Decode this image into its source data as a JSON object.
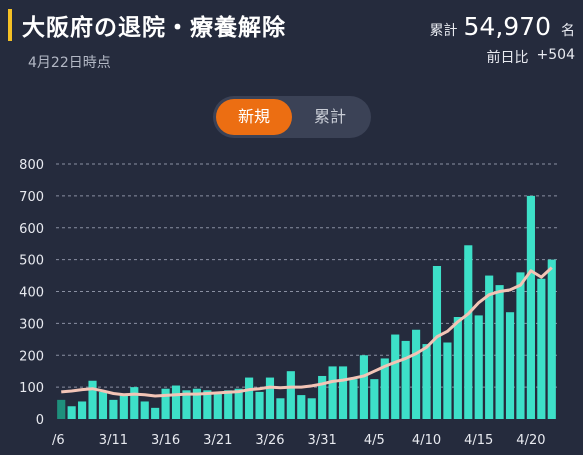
{
  "header": {
    "title": "大阪府の退院・療養解除",
    "date": "4月22日時点",
    "total_label": "累計",
    "total_value": "54,970",
    "total_unit": "名",
    "diff_label": "前日比",
    "diff_value": "+504"
  },
  "toggle": {
    "active_label": "新規",
    "inactive_label": "累計"
  },
  "colors": {
    "background": "#252b3d",
    "bar": "#3de0c8",
    "bar_muted": "#1e8f7c",
    "average_line": "#f3c4b6",
    "gridline": "#8a90a2",
    "toggle_active": "#ec6e12",
    "title_accent": "#f4c025"
  },
  "chart_data": {
    "type": "bar",
    "ylim": [
      0,
      800
    ],
    "yticks": [
      0,
      100,
      200,
      300,
      400,
      500,
      600,
      700,
      800
    ],
    "xtick_labels": [
      "/6",
      "3/11",
      "3/16",
      "3/21",
      "3/26",
      "3/31",
      "4/5",
      "4/10",
      "4/15",
      "4/20"
    ],
    "xtick_index": [
      0,
      5,
      10,
      15,
      20,
      25,
      30,
      35,
      40,
      45
    ],
    "grid": true,
    "series": [
      {
        "type": "bar",
        "values": [
          60,
          40,
          55,
          120,
          85,
          60,
          80,
          100,
          55,
          35,
          95,
          105,
          90,
          95,
          90,
          80,
          90,
          95,
          130,
          85,
          130,
          65,
          150,
          75,
          65,
          135,
          165,
          165,
          125,
          200,
          125,
          190,
          265,
          245,
          280,
          235,
          480,
          240,
          320,
          545,
          325,
          450,
          420,
          335,
          460,
          700,
          440,
          500
        ]
      },
      {
        "type": "line",
        "values": [
          85,
          88,
          92,
          95,
          88,
          80,
          76,
          78,
          76,
          72,
          74,
          76,
          78,
          78,
          80,
          82,
          84,
          86,
          92,
          95,
          100,
          98,
          100,
          100,
          104,
          110,
          118,
          122,
          128,
          135,
          150,
          165,
          178,
          190,
          205,
          225,
          258,
          275,
          305,
          330,
          365,
          390,
          400,
          405,
          420,
          465,
          445,
          475
        ]
      }
    ]
  }
}
